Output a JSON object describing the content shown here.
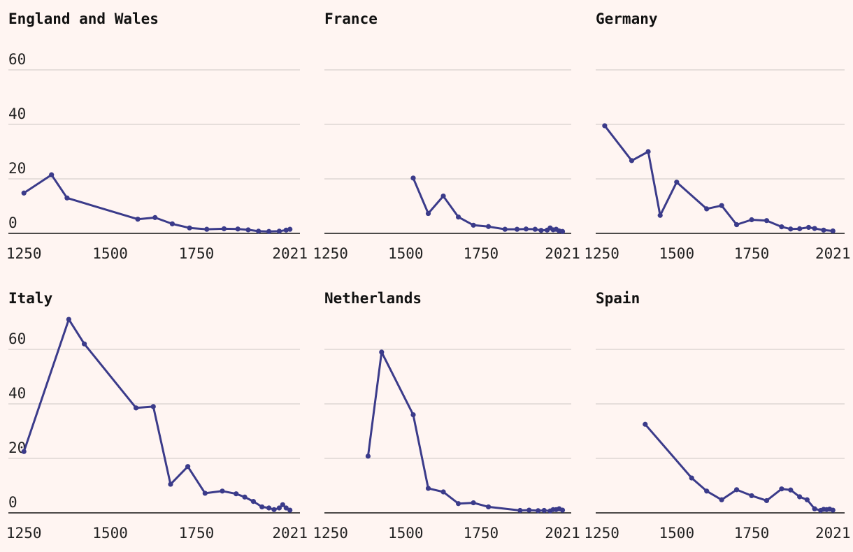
{
  "chart_data": [
    {
      "type": "line",
      "title": "England and Wales",
      "ylim": [
        0,
        60
      ],
      "yticks": [
        0,
        20,
        40,
        60
      ],
      "xticks": [
        1250,
        1500,
        1750,
        2021
      ],
      "show_ytick_labels": true,
      "series": [
        {
          "name": "England and Wales",
          "x": [
            1250,
            1330,
            1375,
            1580,
            1630,
            1680,
            1730,
            1780,
            1830,
            1870,
            1900,
            1930,
            1960,
            1990,
            2010,
            2021
          ],
          "y": [
            14.8,
            21.5,
            13.0,
            5.2,
            5.8,
            3.5,
            2.0,
            1.5,
            1.7,
            1.6,
            1.3,
            0.8,
            0.7,
            0.8,
            1.2,
            1.5
          ]
        }
      ],
      "xlabel": "",
      "ylabel": ""
    },
    {
      "type": "line",
      "title": "France",
      "ylim": [
        0,
        60
      ],
      "yticks": [
        0,
        20,
        40,
        60
      ],
      "xticks": [
        1250,
        1500,
        1750,
        2021
      ],
      "show_ytick_labels": false,
      "series": [
        {
          "name": "France",
          "x": [
            1525,
            1575,
            1625,
            1675,
            1725,
            1775,
            1830,
            1870,
            1900,
            1930,
            1950,
            1970,
            1980,
            1990,
            2000,
            2010,
            2021
          ],
          "y": [
            20.3,
            7.3,
            13.7,
            6.0,
            3.0,
            2.5,
            1.5,
            1.5,
            1.6,
            1.5,
            1.1,
            1.2,
            2.0,
            1.3,
            1.5,
            0.9,
            0.7
          ]
        }
      ],
      "xlabel": "",
      "ylabel": ""
    },
    {
      "type": "line",
      "title": "Germany",
      "ylim": [
        0,
        60
      ],
      "yticks": [
        0,
        20,
        40,
        60
      ],
      "xticks": [
        1250,
        1500,
        1750,
        2021
      ],
      "show_ytick_labels": false,
      "series": [
        {
          "name": "Germany",
          "x": [
            1260,
            1350,
            1405,
            1445,
            1500,
            1600,
            1650,
            1700,
            1750,
            1800,
            1850,
            1880,
            1910,
            1940,
            1960,
            1990,
            2021
          ],
          "y": [
            39.5,
            26.7,
            30.0,
            6.6,
            18.8,
            9.0,
            10.2,
            3.2,
            5.0,
            4.7,
            2.4,
            1.6,
            1.7,
            2.2,
            1.8,
            1.2,
            0.9
          ]
        }
      ],
      "xlabel": "",
      "ylabel": ""
    },
    {
      "type": "line",
      "title": "Italy",
      "ylim": [
        0,
        60
      ],
      "yticks": [
        0,
        20,
        40,
        60
      ],
      "xticks": [
        1250,
        1500,
        1750,
        2021
      ],
      "show_ytick_labels": true,
      "series": [
        {
          "name": "Italy",
          "x": [
            1250,
            1380,
            1425,
            1575,
            1625,
            1675,
            1725,
            1775,
            1825,
            1865,
            1890,
            1915,
            1940,
            1960,
            1975,
            1990,
            2000,
            2010,
            2021
          ],
          "y": [
            22.5,
            71.0,
            62.0,
            38.5,
            39.0,
            10.5,
            17.0,
            7.2,
            8.0,
            7.0,
            5.8,
            4.2,
            2.2,
            1.8,
            1.2,
            1.8,
            3.0,
            1.8,
            1.0
          ]
        }
      ],
      "xlabel": "",
      "ylabel": ""
    },
    {
      "type": "line",
      "title": "Netherlands",
      "ylim": [
        0,
        60
      ],
      "yticks": [
        0,
        20,
        40,
        60
      ],
      "xticks": [
        1250,
        1500,
        1750,
        2021
      ],
      "show_ytick_labels": false,
      "series": [
        {
          "name": "Netherlands",
          "x": [
            1375,
            1420,
            1525,
            1575,
            1625,
            1675,
            1725,
            1775,
            1880,
            1910,
            1940,
            1960,
            1980,
            1990,
            2000,
            2010,
            2021
          ],
          "y": [
            20.8,
            59.0,
            36.0,
            9.0,
            7.7,
            3.4,
            3.7,
            2.2,
            0.9,
            1.0,
            0.8,
            0.9,
            0.7,
            1.2,
            1.2,
            1.5,
            1.0
          ]
        }
      ],
      "xlabel": "",
      "ylabel": ""
    },
    {
      "type": "line",
      "title": "Spain",
      "ylim": [
        0,
        60
      ],
      "yticks": [
        0,
        20,
        40,
        60
      ],
      "xticks": [
        1250,
        1500,
        1750,
        2021
      ],
      "show_ytick_labels": false,
      "series": [
        {
          "name": "Spain",
          "x": [
            1395,
            1550,
            1600,
            1650,
            1700,
            1750,
            1800,
            1850,
            1880,
            1910,
            1935,
            1960,
            1980,
            1990,
            2000,
            2010,
            2021
          ],
          "y": [
            32.5,
            12.8,
            8.0,
            4.8,
            8.5,
            6.3,
            4.5,
            8.8,
            8.4,
            5.9,
            4.8,
            1.5,
            0.9,
            1.3,
            1.2,
            1.4,
            1.0
          ]
        }
      ],
      "xlabel": "",
      "ylabel": ""
    }
  ]
}
